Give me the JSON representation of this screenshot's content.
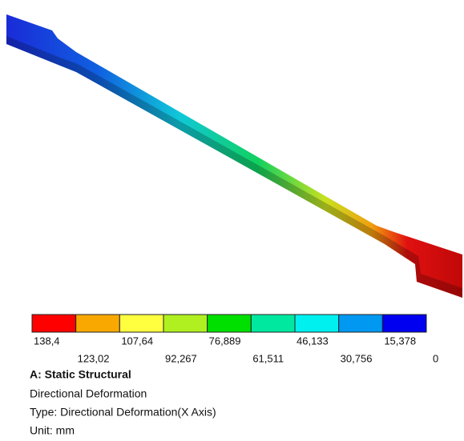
{
  "legend": {
    "colors": [
      "#ff0000",
      "#f8a800",
      "#ffff40",
      "#b0f020",
      "#00e000",
      "#00e8a0",
      "#00f0f0",
      "#0098f0",
      "#0000f0"
    ],
    "labels": [
      "138,4",
      "123,02",
      "107,64",
      "92,267",
      "76,889",
      "61,511",
      "46,133",
      "30,756",
      "15,378",
      "0"
    ]
  },
  "info": {
    "title": "A: Static Structural",
    "lines": [
      "Directional Deformation",
      "Type: Directional Deformation(X Axis)",
      "Unit: mm"
    ]
  }
}
